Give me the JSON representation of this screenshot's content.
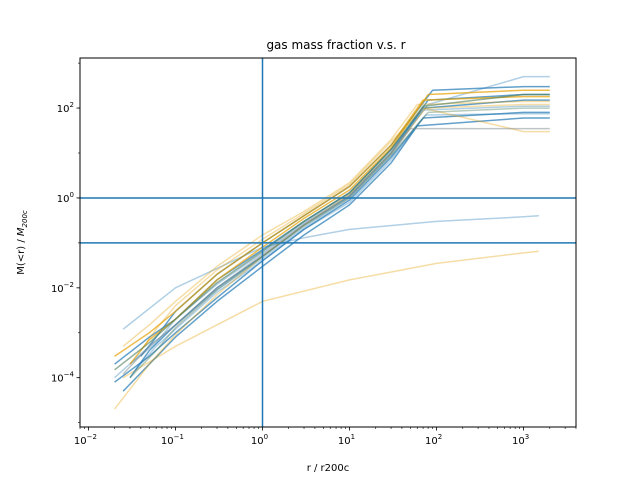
{
  "chart_data": {
    "type": "line",
    "title": "gas mass fraction v.s. r",
    "xlabel": "r / r200c",
    "ylabel_prefix": "M(<r) / ",
    "ylabel_symbol": "M",
    "ylabel_subscript": "200c",
    "xscale": "log",
    "yscale": "log",
    "xlim": [
      0.008,
      4000
    ],
    "ylim": [
      8e-06,
      1300
    ],
    "xticks": [
      {
        "value": 0.01,
        "base": "10",
        "exp": "−2"
      },
      {
        "value": 0.1,
        "base": "10",
        "exp": "−1"
      },
      {
        "value": 1,
        "base": "10",
        "exp": "0"
      },
      {
        "value": 10,
        "base": "10",
        "exp": "1"
      },
      {
        "value": 100,
        "base": "10",
        "exp": "2"
      },
      {
        "value": 1000,
        "base": "10",
        "exp": "3"
      }
    ],
    "yticks": [
      {
        "value": 0.0001,
        "base": "10",
        "exp": "−4"
      },
      {
        "value": 0.01,
        "base": "10",
        "exp": "−2"
      },
      {
        "value": 1,
        "base": "10",
        "exp": "0"
      },
      {
        "value": 100,
        "base": "10",
        "exp": "2"
      }
    ],
    "reference_lines": {
      "color": "#1f77b4",
      "vertical_x": [
        1
      ],
      "horizontal_y": [
        1,
        0.1
      ]
    },
    "colors": {
      "blue": "#1f77b4",
      "orange": "#e69f00",
      "green": "#4c7d5a",
      "gray": "#7f8c8d"
    },
    "series": [
      {
        "color": "blue",
        "opacity": 0.35,
        "x": [
          0.025,
          0.1,
          1,
          3,
          10,
          100,
          1000,
          1500
        ],
        "y": [
          0.0012,
          0.01,
          0.08,
          0.13,
          0.2,
          0.3,
          0.38,
          0.4
        ]
      },
      {
        "color": "orange",
        "opacity": 0.35,
        "x": [
          0.025,
          0.1,
          1,
          10,
          100,
          1000,
          1500
        ],
        "y": [
          0.0001,
          0.0005,
          0.005,
          0.015,
          0.035,
          0.06,
          0.065
        ]
      },
      {
        "color": "blue",
        "opacity": 0.7,
        "x": [
          0.02,
          0.05,
          0.1,
          0.3,
          1,
          3,
          10,
          30,
          70,
          1000,
          2000
        ],
        "y": [
          8e-05,
          0.0003,
          0.001,
          0.006,
          0.04,
          0.2,
          0.9,
          8,
          60,
          80,
          80
        ]
      },
      {
        "color": "blue",
        "opacity": 0.7,
        "x": [
          0.02,
          0.05,
          0.1,
          0.3,
          1,
          3,
          10,
          30,
          70,
          1000,
          2000
        ],
        "y": [
          0.0002,
          0.0008,
          0.002,
          0.015,
          0.07,
          0.3,
          1.3,
          12,
          100,
          150,
          150
        ]
      },
      {
        "color": "blue",
        "opacity": 0.7,
        "x": [
          0.03,
          0.05,
          0.1,
          0.3,
          1,
          3,
          10,
          30,
          80,
          1000,
          2000
        ],
        "y": [
          0.0001,
          0.0004,
          0.0015,
          0.01,
          0.05,
          0.25,
          1.1,
          10,
          150,
          200,
          200
        ]
      },
      {
        "color": "blue",
        "opacity": 0.7,
        "x": [
          0.025,
          0.05,
          0.1,
          0.3,
          1,
          3,
          10,
          30,
          60,
          1000,
          2000
        ],
        "y": [
          5e-05,
          0.0002,
          0.0008,
          0.005,
          0.03,
          0.15,
          0.7,
          6,
          40,
          60,
          60
        ]
      },
      {
        "color": "blue",
        "opacity": 0.7,
        "x": [
          0.04,
          0.06,
          0.1,
          0.3,
          1,
          3,
          10,
          30,
          90,
          1000,
          2000
        ],
        "y": [
          0.0003,
          0.0008,
          0.003,
          0.02,
          0.1,
          0.4,
          1.8,
          15,
          250,
          300,
          300
        ]
      },
      {
        "color": "blue",
        "opacity": 0.35,
        "x": [
          0.03,
          0.06,
          0.1,
          0.3,
          1,
          3,
          10,
          30,
          80,
          1000,
          2000
        ],
        "y": [
          0.0002,
          0.0006,
          0.002,
          0.012,
          0.06,
          0.28,
          1.2,
          11,
          120,
          500,
          500
        ]
      },
      {
        "color": "blue",
        "opacity": 0.35,
        "x": [
          0.02,
          0.05,
          0.1,
          0.3,
          1,
          3,
          10,
          30,
          70,
          1000,
          2000
        ],
        "y": [
          0.0001,
          0.0005,
          0.0015,
          0.009,
          0.045,
          0.22,
          1.0,
          9,
          90,
          110,
          110
        ]
      },
      {
        "color": "blue",
        "opacity": 0.35,
        "x": [
          0.035,
          0.06,
          0.1,
          0.3,
          1,
          3,
          10,
          30,
          75,
          1000,
          2000
        ],
        "y": [
          0.00015,
          0.0005,
          0.0012,
          0.008,
          0.04,
          0.2,
          0.8,
          7,
          70,
          75,
          75
        ]
      },
      {
        "color": "orange",
        "opacity": 0.7,
        "x": [
          0.02,
          0.05,
          0.1,
          0.3,
          1,
          3,
          10,
          30,
          70,
          1000,
          2000
        ],
        "y": [
          0.0003,
          0.001,
          0.003,
          0.02,
          0.1,
          0.4,
          1.8,
          15,
          150,
          180,
          180
        ]
      },
      {
        "color": "orange",
        "opacity": 0.7,
        "x": [
          0.03,
          0.05,
          0.1,
          0.3,
          1,
          3,
          10,
          30,
          80,
          1000,
          2000
        ],
        "y": [
          0.0002,
          0.0007,
          0.002,
          0.015,
          0.08,
          0.35,
          1.5,
          13,
          200,
          250,
          250
        ]
      },
      {
        "color": "orange",
        "opacity": 0.35,
        "x": [
          0.025,
          0.05,
          0.1,
          0.3,
          1,
          3,
          10,
          30,
          60,
          1000,
          2000
        ],
        "y": [
          0.0005,
          0.0015,
          0.005,
          0.03,
          0.15,
          0.5,
          2.2,
          20,
          120,
          140,
          140
        ]
      },
      {
        "color": "orange",
        "opacity": 0.35,
        "x": [
          0.04,
          0.06,
          0.1,
          0.3,
          1,
          3,
          10,
          30,
          70,
          1000,
          2000
        ],
        "y": [
          0.0004,
          0.0012,
          0.004,
          0.025,
          0.12,
          0.45,
          2.0,
          18,
          100,
          30,
          30
        ]
      },
      {
        "color": "orange",
        "opacity": 0.35,
        "x": [
          0.02,
          0.05,
          0.1,
          0.3,
          1,
          3,
          10,
          30,
          75,
          1000,
          2000
        ],
        "y": [
          2e-05,
          0.0002,
          0.0009,
          0.007,
          0.05,
          0.25,
          1.2,
          10,
          100,
          120,
          120
        ]
      },
      {
        "color": "green",
        "opacity": 0.6,
        "x": [
          0.02,
          0.05,
          0.1,
          0.3,
          1,
          3,
          10,
          30,
          70,
          1000,
          2000
        ],
        "y": [
          0.00015,
          0.0006,
          0.002,
          0.013,
          0.065,
          0.3,
          1.3,
          12,
          110,
          200,
          200
        ]
      },
      {
        "color": "green",
        "opacity": 0.4,
        "x": [
          0.03,
          0.06,
          0.1,
          0.3,
          1,
          3,
          10,
          30,
          80,
          1000,
          2000
        ],
        "y": [
          0.0001,
          0.0004,
          0.0013,
          0.009,
          0.05,
          0.24,
          1.0,
          9,
          80,
          100,
          100
        ]
      },
      {
        "color": "gray",
        "opacity": 0.5,
        "x": [
          0.025,
          0.05,
          0.1,
          0.3,
          1,
          3,
          10,
          30,
          50,
          1000,
          2000
        ],
        "y": [
          0.00012,
          0.0005,
          0.0015,
          0.01,
          0.055,
          0.26,
          1.1,
          10,
          35,
          35,
          35
        ]
      }
    ]
  }
}
